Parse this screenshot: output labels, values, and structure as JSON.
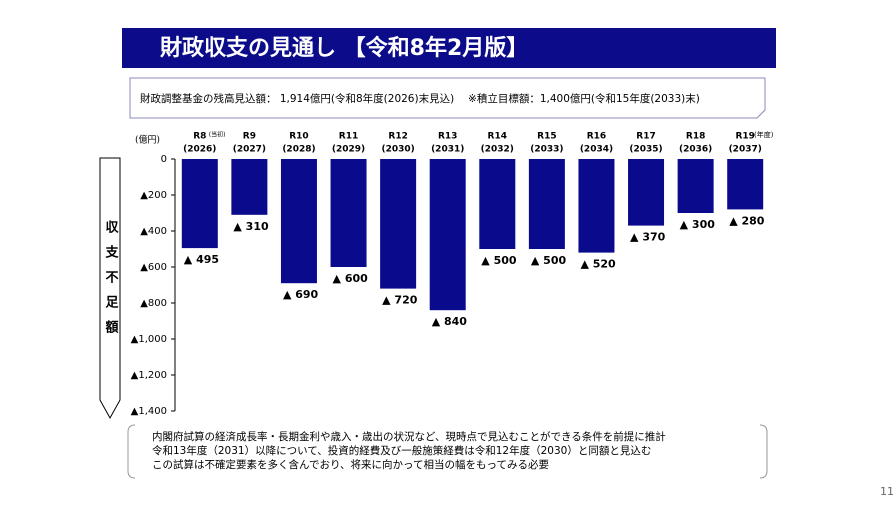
{
  "chart_data": {
    "type": "bar",
    "title": "財政収支の見通し 【令和8年2月版】",
    "subtitle": "財政調整基金の残高見込額： 1,914億円(令和8年度(2026)末見込)　 ※積立目標額：1,400億円(令和15年度(2033)末)",
    "y_label": "収支不足額",
    "y_unit": "(億円)",
    "x_unit": "(年度)",
    "first_category_note": "(当初)",
    "categories": [
      "R8",
      "R9",
      "R10",
      "R11",
      "R12",
      "R13",
      "R14",
      "R15",
      "R16",
      "R17",
      "R18",
      "R19"
    ],
    "category_years": [
      "(2026)",
      "(2027)",
      "(2028)",
      "(2029)",
      "(2030)",
      "(2031)",
      "(2032)",
      "(2033)",
      "(2034)",
      "(2035)",
      "(2036)",
      "(2037)"
    ],
    "values": [
      -495,
      -310,
      -690,
      -600,
      -720,
      -840,
      -500,
      -500,
      -520,
      -370,
      -300,
      -280
    ],
    "value_labels": [
      "▲ 495",
      "▲ 310",
      "▲ 690",
      "▲ 600",
      "▲ 720",
      "▲ 840",
      "▲ 500",
      "▲ 500",
      "▲ 520",
      "▲ 370",
      "▲ 300",
      "▲ 280"
    ],
    "color": "#0a0a8c",
    "ylim": [
      -1400,
      0
    ],
    "yticks": [
      {
        "value": 0,
        "label": "0"
      },
      {
        "value": -200,
        "label": "▲200"
      },
      {
        "value": -400,
        "label": "▲400"
      },
      {
        "value": -600,
        "label": "▲600"
      },
      {
        "value": -800,
        "label": "▲800"
      },
      {
        "value": -1000,
        "label": "▲1,000"
      },
      {
        "value": -1200,
        "label": "▲1,200"
      },
      {
        "value": -1400,
        "label": "▲1,400"
      }
    ],
    "notes": [
      "内閣府試算の経済成長率・長期金利や歳入・歳出の状況など、現時点で見込むことができる条件を前提に推計",
      "令和13年度（2031）以降について、投資的経費及び一般施策経費は令和12年度（2030）と同額と見込む",
      "この試算は不確定要素を多く含んでおり、将来に向かって相当の幅をもってみる必要"
    ],
    "page_number": "11"
  }
}
